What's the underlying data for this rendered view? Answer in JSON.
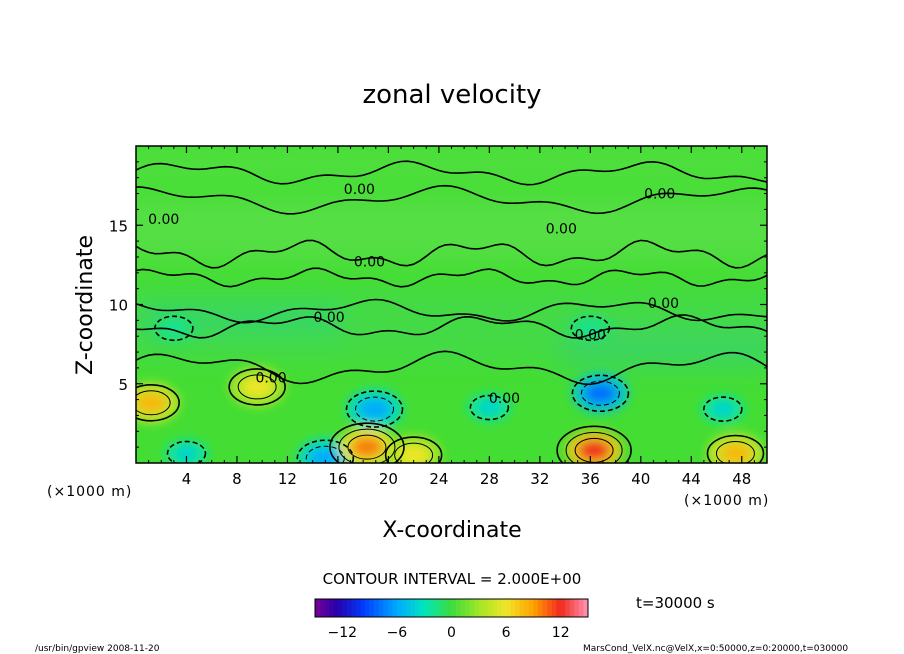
{
  "chart_data": {
    "type": "heatmap",
    "title": "zonal velocity",
    "xlabel": "X-coordinate",
    "ylabel": "Z-coordinate",
    "x_unit": "(×1000 m)",
    "y_unit": "(×1000 m)",
    "x_ticks": [
      4,
      8,
      12,
      16,
      20,
      24,
      28,
      32,
      36,
      40,
      44,
      48
    ],
    "y_ticks": [
      5,
      10,
      15
    ],
    "xlim": [
      0,
      50
    ],
    "ylim": [
      0,
      20
    ],
    "contour_interval_label": "CONTOUR INTERVAL = 2.000E+00",
    "time_label": "t=30000 s",
    "contour_labels": [
      {
        "text": "0.00",
        "x": 17.7,
        "z": 17.3
      },
      {
        "text": "0.00",
        "x": 41.5,
        "z": 17.0
      },
      {
        "text": "0.00",
        "x": 2.2,
        "z": 15.4
      },
      {
        "text": "0.00",
        "x": 33.7,
        "z": 14.8
      },
      {
        "text": "0.00",
        "x": 18.5,
        "z": 12.7
      },
      {
        "text": "0.00",
        "x": 41.8,
        "z": 10.1
      },
      {
        "text": "0.00",
        "x": 15.3,
        "z": 9.2
      },
      {
        "text": "0.00",
        "x": 36.0,
        "z": 8.1
      },
      {
        "text": "0.00",
        "x": 10.7,
        "z": 5.4
      },
      {
        "text": "0.00",
        "x": 29.2,
        "z": 4.1
      }
    ],
    "features": [
      {
        "x": 1.2,
        "z": 3.8,
        "value": 8
      },
      {
        "x": 4.0,
        "z": 0.6,
        "value": -4
      },
      {
        "x": 9.6,
        "z": 4.8,
        "value": 6
      },
      {
        "x": 15.0,
        "z": 0.3,
        "value": -6
      },
      {
        "x": 18.9,
        "z": 3.4,
        "value": -6
      },
      {
        "x": 18.3,
        "z": 1.0,
        "value": 10
      },
      {
        "x": 22.0,
        "z": 0.5,
        "value": 6
      },
      {
        "x": 28.0,
        "z": 3.5,
        "value": -4
      },
      {
        "x": 36.8,
        "z": 4.4,
        "value": -8
      },
      {
        "x": 36.3,
        "z": 0.8,
        "value": 12
      },
      {
        "x": 46.5,
        "z": 3.4,
        "value": -4
      },
      {
        "x": 47.5,
        "z": 0.6,
        "value": 8
      },
      {
        "x": 3.0,
        "z": 8.5,
        "value": -2
      },
      {
        "x": 36.0,
        "z": 8.5,
        "value": -2
      }
    ],
    "colorbar": {
      "min": -15,
      "max": 15,
      "ticks": [
        "−12",
        "−6",
        "0",
        "6",
        "12"
      ],
      "tick_values": [
        -12,
        -6,
        0,
        6,
        12
      ]
    }
  },
  "footer": {
    "left": "/usr/bin/gpview   2008-11-20",
    "right": "MarsCond_VelX.nc@VelX,x=0:50000,z=0:20000,t=030000"
  }
}
